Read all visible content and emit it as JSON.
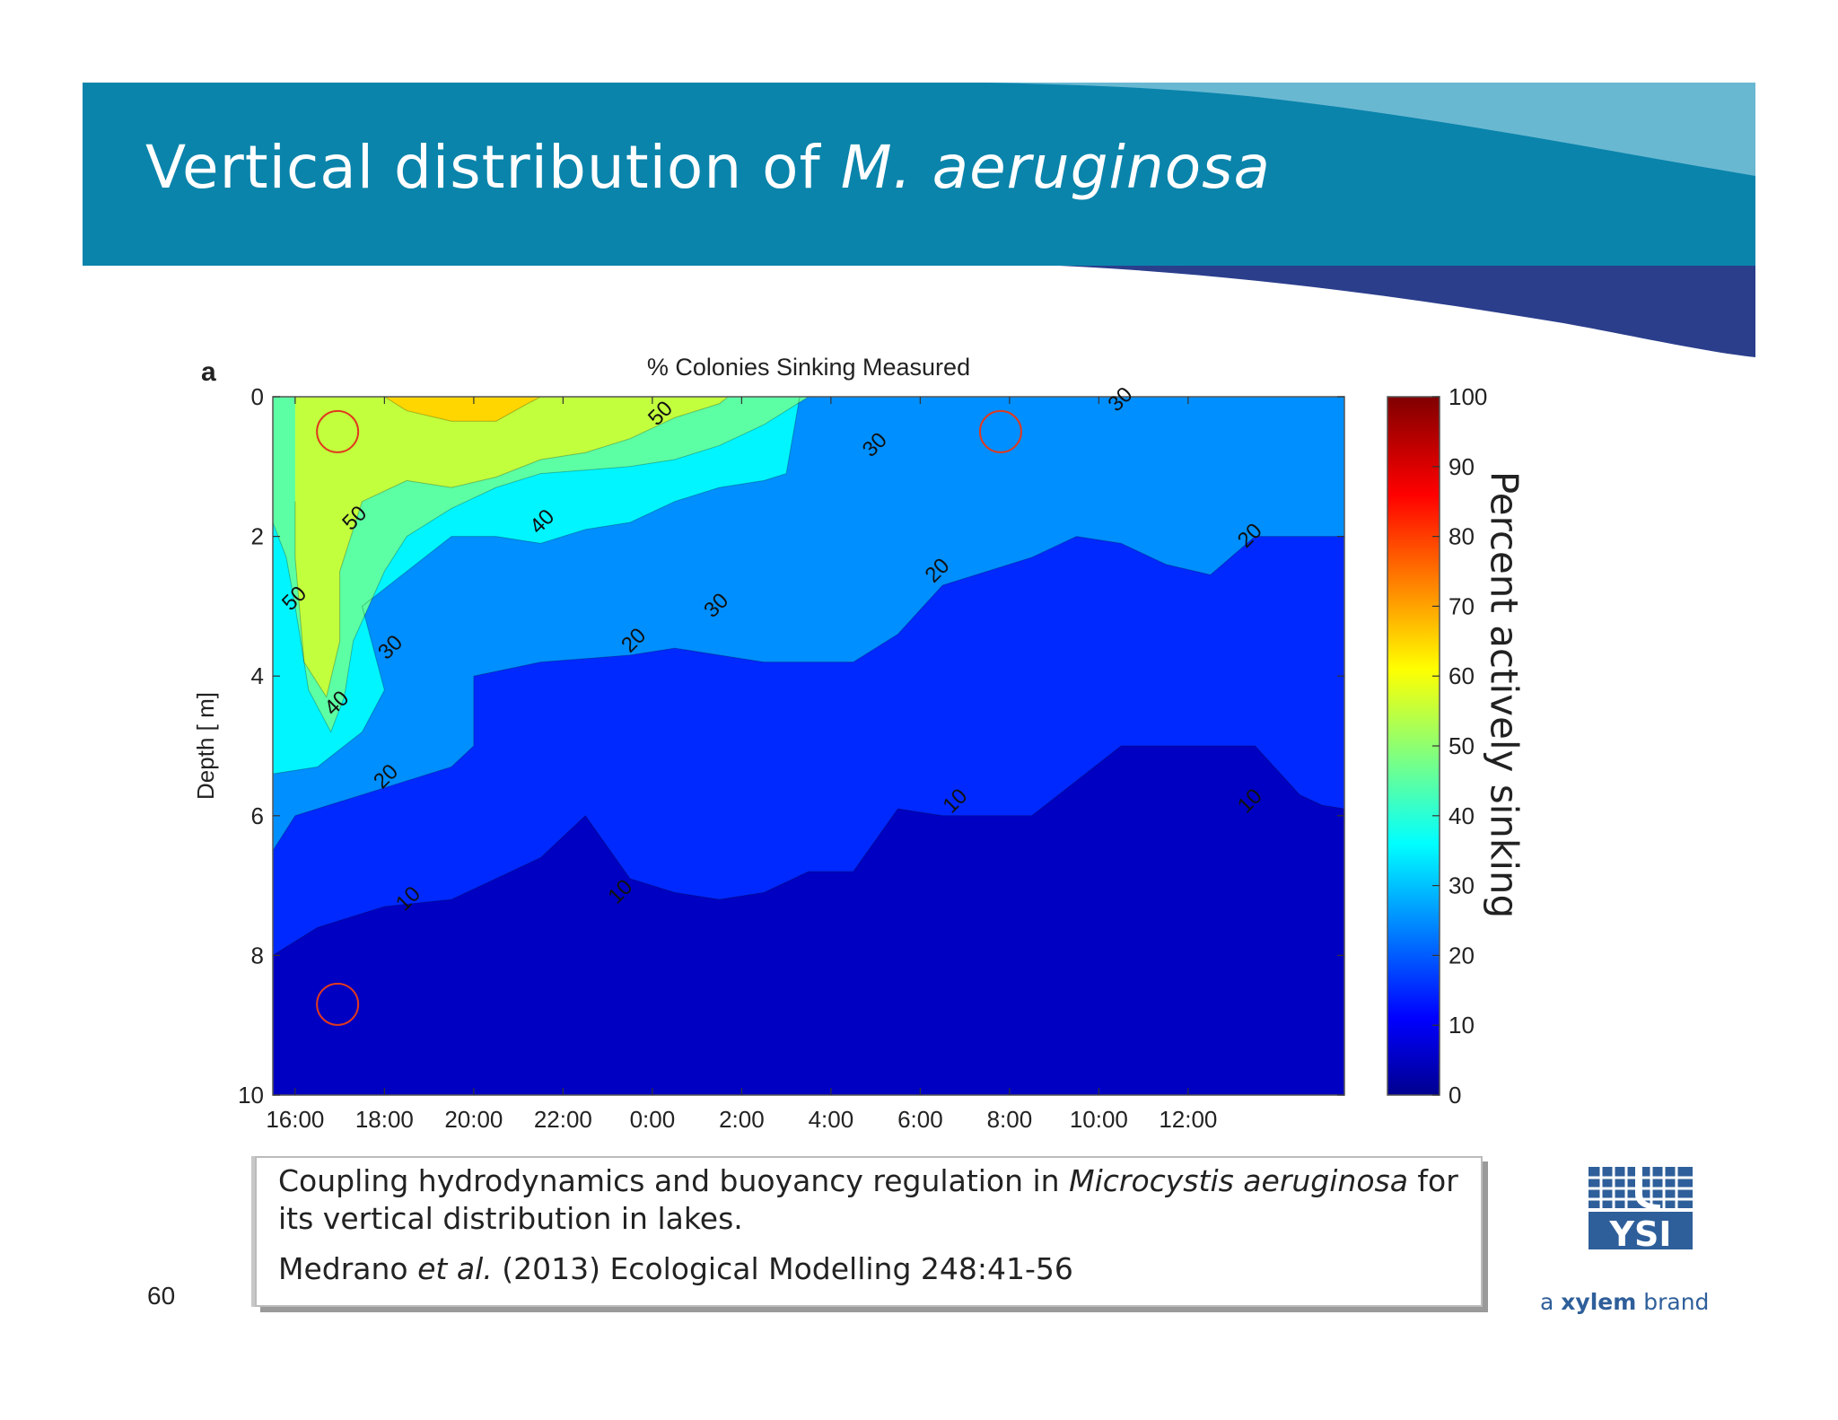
{
  "slide": {
    "title_prefix": "Vertical distribution of ",
    "title_species": "M. aeruginosa",
    "page_number": "60",
    "colors": {
      "header_teal": "#0a84ab",
      "header_light": "#69b8d2",
      "header_navy": "#2a3e8c"
    }
  },
  "citation": {
    "line1_pre": "Coupling hydrodynamics and buoyancy regulation in ",
    "line1_species": "Microcystis aeruginosa",
    "line1_post": " for",
    "line2": "its vertical distribution in lakes.",
    "line3_pre": "Medrano ",
    "line3_etal": "et al.",
    "line3_post": " (2013)  Ecological Modelling 248:41-56"
  },
  "logo": {
    "brand": "YSI",
    "tagline_pre": "a ",
    "tagline_bold": "xylem",
    "tagline_post": " brand"
  },
  "chart_data": {
    "type": "heatmap",
    "panel_label": "a",
    "title": "% Colonies Sinking Measured",
    "ylabel": "Depth [ m]",
    "xlabel": "",
    "x_ticks": [
      "16:00",
      "18:00",
      "20:00",
      "22:00",
      "0:00",
      "2:00",
      "4:00",
      "6:00",
      "8:00",
      "10:00",
      "12:00"
    ],
    "y_ticks": [
      "0",
      "2",
      "4",
      "6",
      "8",
      "10"
    ],
    "ylim": [
      0,
      10
    ],
    "y_inverted": true,
    "levels": [
      10,
      20,
      30,
      40,
      50
    ],
    "colorbar": {
      "label": "Percent actively sinking",
      "ticks": [
        "0",
        "10",
        "20",
        "30",
        "40",
        "50",
        "60",
        "70",
        "80",
        "90",
        "100"
      ],
      "range": [
        0,
        100
      ],
      "colormap": "jet"
    },
    "contour_labels": [
      {
        "text": "50",
        "t": 0.5,
        "d": 2.9
      },
      {
        "text": "50",
        "t": 1.85,
        "d": 1.75
      },
      {
        "text": "50",
        "t": 8.7,
        "d": 0.25
      },
      {
        "text": "40",
        "t": 6.05,
        "d": 1.8
      },
      {
        "text": "40",
        "t": 1.45,
        "d": 4.4
      },
      {
        "text": "30",
        "t": 2.65,
        "d": 3.6
      },
      {
        "text": "30",
        "t": 9.95,
        "d": 3.0
      },
      {
        "text": "30",
        "t": 13.5,
        "d": 0.7
      },
      {
        "text": "30",
        "t": 19.0,
        "d": 0.05
      },
      {
        "text": "20",
        "t": 2.55,
        "d": 5.45
      },
      {
        "text": "20",
        "t": 8.1,
        "d": 3.5
      },
      {
        "text": "20",
        "t": 14.9,
        "d": 2.5
      },
      {
        "text": "20",
        "t": 21.9,
        "d": 2.0
      },
      {
        "text": "10",
        "t": 3.05,
        "d": 7.2
      },
      {
        "text": "10",
        "t": 7.8,
        "d": 7.1
      },
      {
        "text": "10",
        "t": 15.3,
        "d": 5.8
      },
      {
        "text": "10",
        "t": 21.9,
        "d": 5.8
      }
    ],
    "highlighted_points": [
      {
        "t": 1.45,
        "d": 0.5
      },
      {
        "t": 1.45,
        "d": 8.7
      },
      {
        "t": 16.3,
        "d": 0.5
      }
    ],
    "contours": {
      "10": [
        [
          0,
          8
        ],
        [
          1,
          7.6
        ],
        [
          2.5,
          7.3
        ],
        [
          4,
          7.2
        ],
        [
          5,
          6.9
        ],
        [
          6,
          6.6
        ],
        [
          7,
          6.0
        ],
        [
          8,
          6.9
        ],
        [
          9,
          7.1
        ],
        [
          10,
          7.2
        ],
        [
          11,
          7.1
        ],
        [
          12,
          6.8
        ],
        [
          13,
          6.8
        ],
        [
          14,
          5.9
        ],
        [
          15,
          6.0
        ],
        [
          16,
          6.0
        ],
        [
          17,
          6.0
        ],
        [
          18,
          5.5
        ],
        [
          19,
          5.0
        ],
        [
          20,
          5.0
        ],
        [
          21,
          5.0
        ],
        [
          22,
          5.0
        ],
        [
          23,
          5.7
        ],
        [
          23.5,
          5.85
        ],
        [
          24,
          5.9
        ]
      ],
      "20": [
        [
          0,
          6.5
        ],
        [
          0.5,
          6.0
        ],
        [
          2,
          5.7
        ],
        [
          4,
          5.3
        ],
        [
          4.5,
          5.0
        ],
        [
          4.5,
          4.0
        ],
        [
          6,
          3.8
        ],
        [
          8,
          3.7
        ],
        [
          9,
          3.6
        ],
        [
          10,
          3.7
        ],
        [
          11,
          3.8
        ],
        [
          12,
          3.8
        ],
        [
          13,
          3.8
        ],
        [
          14,
          3.4
        ],
        [
          15,
          2.7
        ],
        [
          16,
          2.5
        ],
        [
          17,
          2.3
        ],
        [
          18,
          2.0
        ],
        [
          19,
          2.1
        ],
        [
          20,
          2.4
        ],
        [
          21,
          2.55
        ],
        [
          22,
          2.0
        ],
        [
          24,
          2.0
        ]
      ],
      "30": [
        [
          0,
          5.4
        ],
        [
          1,
          5.3
        ],
        [
          2,
          4.8
        ],
        [
          2.5,
          4.2
        ],
        [
          2,
          3.0
        ],
        [
          3,
          2.5
        ],
        [
          4,
          2.0
        ],
        [
          5,
          2.0
        ],
        [
          6,
          2.1
        ],
        [
          7,
          1.9
        ],
        [
          8,
          1.8
        ],
        [
          9,
          1.5
        ],
        [
          10,
          1.3
        ],
        [
          11,
          1.2
        ],
        [
          11.5,
          1.1
        ],
        [
          11.8,
          0
        ],
        [
          24,
          0
        ]
      ],
      "40": [
        [
          0,
          1.8
        ],
        [
          0.3,
          2.3
        ],
        [
          0.5,
          3.0
        ],
        [
          0.8,
          4.2
        ],
        [
          1.3,
          4.8
        ],
        [
          1.6,
          4.3
        ],
        [
          1.8,
          3.5
        ],
        [
          2.5,
          2.5
        ],
        [
          3,
          2.0
        ],
        [
          4,
          1.6
        ],
        [
          5,
          1.3
        ],
        [
          6,
          1.1
        ],
        [
          7,
          1.05
        ],
        [
          8,
          1.0
        ],
        [
          9,
          0.9
        ],
        [
          10,
          0.7
        ],
        [
          11,
          0.4
        ],
        [
          12,
          0
        ],
        [
          14,
          0
        ],
        [
          15,
          0
        ],
        [
          16,
          0
        ],
        [
          17,
          0
        ],
        [
          18,
          0
        ],
        [
          19,
          0
        ],
        [
          20,
          0
        ]
      ],
      "50": [
        [
          0.5,
          1.5
        ],
        [
          0.5,
          2.3
        ],
        [
          0.7,
          3.8
        ],
        [
          1.2,
          4.3
        ],
        [
          1.5,
          3.5
        ],
        [
          1.5,
          2.5
        ],
        [
          2,
          1.5
        ],
        [
          3,
          1.2
        ],
        [
          4,
          1.3
        ],
        [
          5,
          1.15
        ],
        [
          6,
          0.9
        ],
        [
          7,
          0.8
        ],
        [
          8,
          0.6
        ],
        [
          9,
          0.3
        ],
        [
          10,
          0.1
        ],
        [
          10.2,
          0
        ]
      ],
      "60": [
        [
          2.5,
          0
        ],
        [
          3,
          0.2
        ],
        [
          4,
          0.35
        ],
        [
          5,
          0.35
        ],
        [
          5.7,
          0.1
        ],
        [
          6,
          0
        ]
      ]
    }
  }
}
